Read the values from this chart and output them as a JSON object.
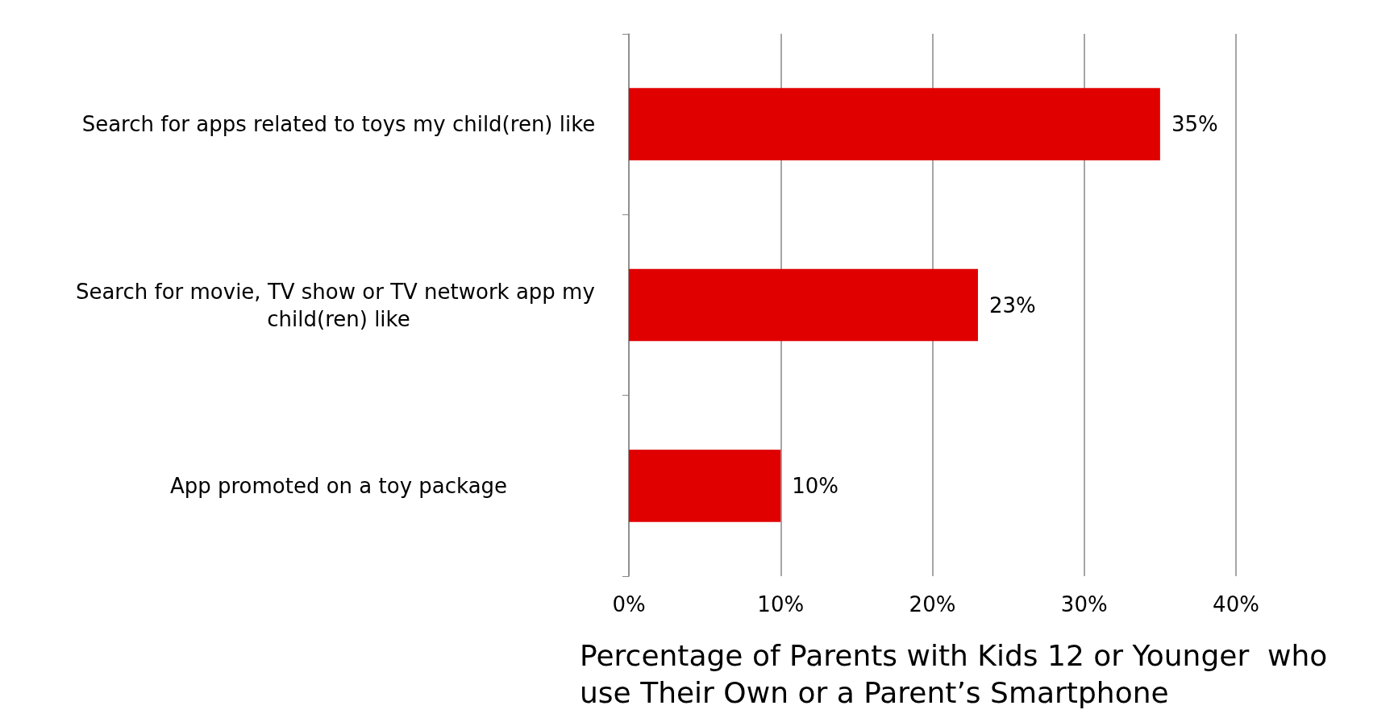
{
  "chart_data": {
    "type": "bar",
    "orientation": "horizontal",
    "xlabel": "Percentage of Parents with Kids 12 or Younger  who use Their Own or a Parent’s Smartphone",
    "categories": [
      "Search for apps related to toys my child(ren) like",
      "Search for movie, TV show or TV network app my child(ren) like",
      "App promoted on a toy package"
    ],
    "values": [
      35,
      23,
      10
    ],
    "value_labels": [
      "35%",
      "23%",
      "10%"
    ],
    "color": "#e00000",
    "xlim": [
      0,
      40
    ],
    "xticks": [
      {
        "value": 0,
        "label": "0%"
      },
      {
        "value": 10,
        "label": "10%"
      },
      {
        "value": 20,
        "label": "20%"
      },
      {
        "value": 30,
        "label": "30%"
      },
      {
        "value": 40,
        "label": "40%"
      }
    ],
    "grid": "x"
  }
}
